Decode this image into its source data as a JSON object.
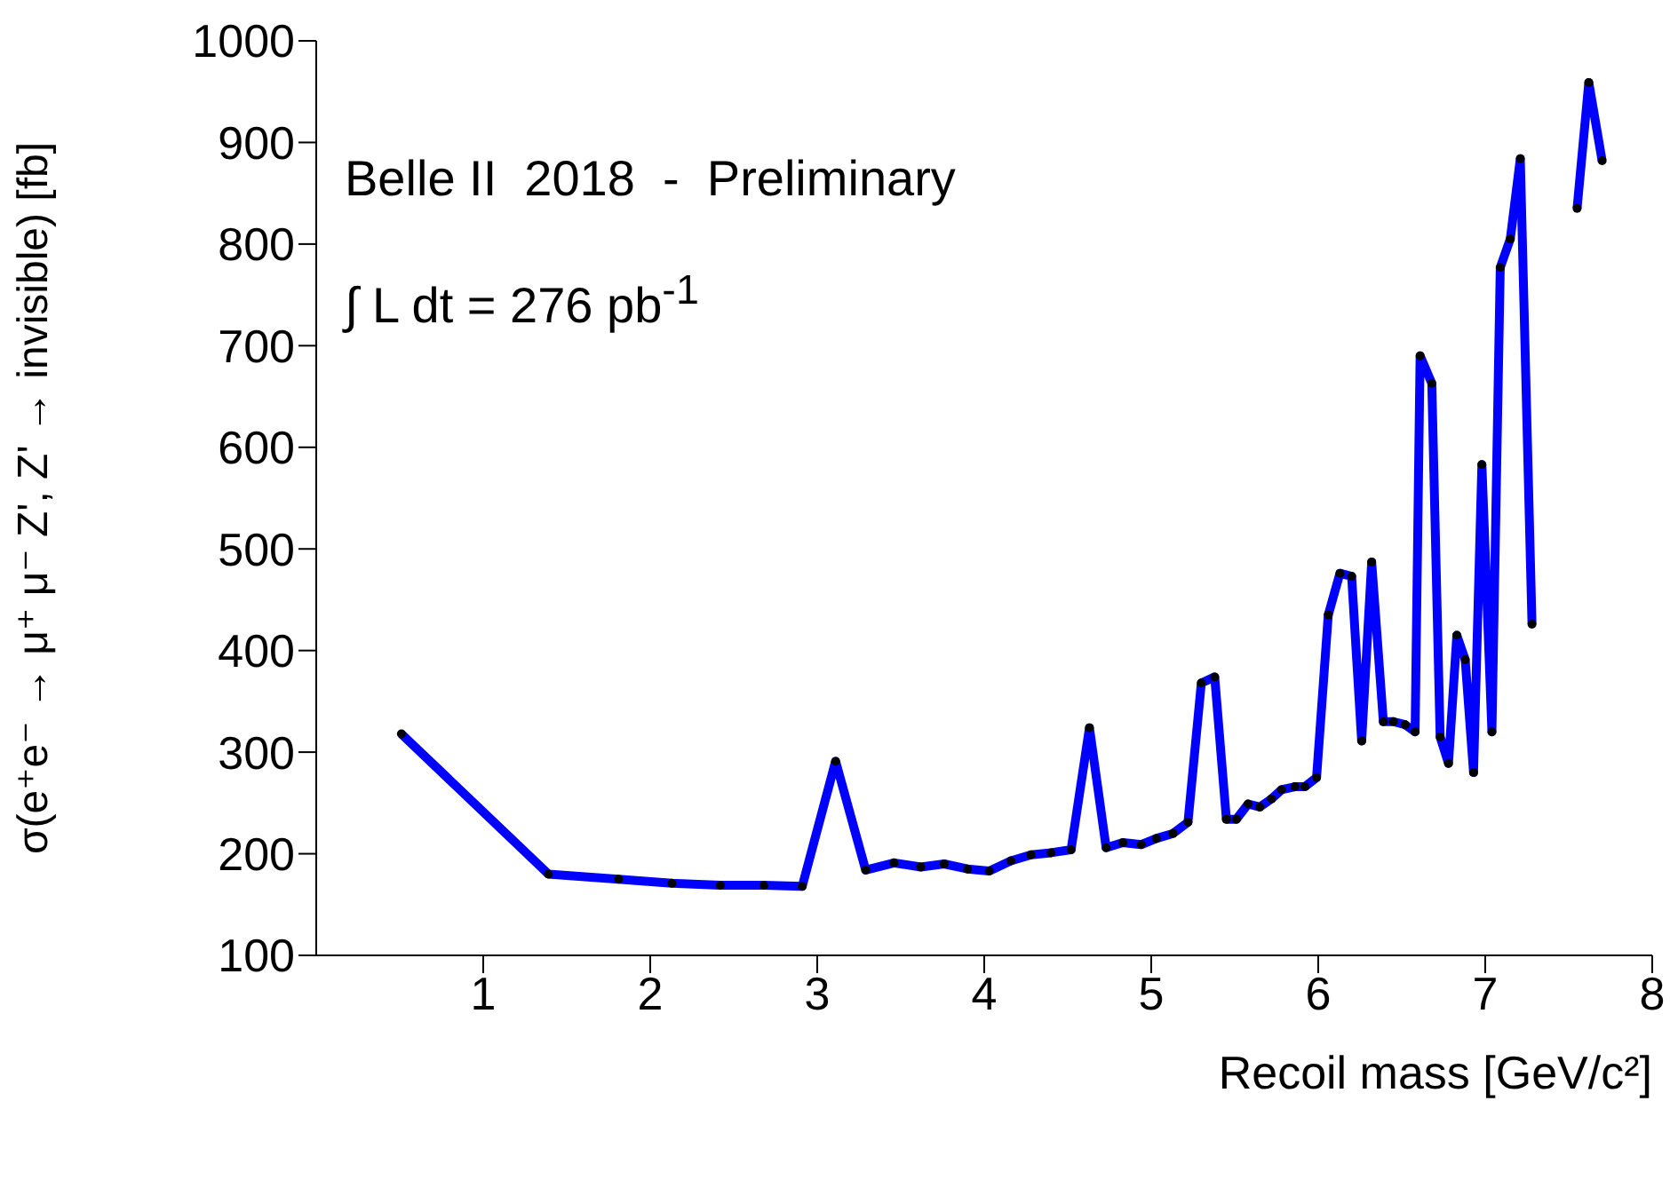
{
  "chart_data": {
    "type": "line",
    "xlabel": "Recoil mass [GeV/c²]",
    "ylabel": "σ(e⁺e⁻ → μ⁺ μ⁻ Z', Z' → invisible) [fb]",
    "annotations": [
      "Belle II  2018  -  Preliminary",
      "∫ L dt = 276 pb$^{-1}$"
    ],
    "x": [
      0.51,
      1.39,
      1.81,
      2.13,
      2.42,
      2.68,
      2.91,
      3.11,
      3.29,
      3.46,
      3.62,
      3.76,
      3.9,
      4.03,
      4.16,
      4.28,
      4.4,
      4.52,
      4.63,
      4.73,
      4.83,
      4.94,
      5.03,
      5.13,
      5.22,
      5.3,
      5.38,
      5.45,
      5.51,
      5.58,
      5.65,
      5.72,
      5.78,
      5.86,
      5.92,
      5.99,
      6.06,
      6.13,
      6.2,
      6.26,
      6.32,
      6.39,
      6.45,
      6.52,
      6.58,
      6.61,
      6.68,
      6.73,
      6.78,
      6.83,
      6.88,
      6.93,
      6.98,
      7.04,
      7.09,
      7.15,
      7.21,
      7.28,
      7.4,
      7.55,
      7.62,
      7.7
    ],
    "series": [
      {
        "color": "#0000ff",
        "values": [
          318,
          180,
          175,
          171,
          169,
          169,
          168,
          291,
          184,
          191,
          187,
          190,
          185,
          183,
          193,
          199,
          201,
          204,
          324,
          206,
          211,
          209,
          215,
          220,
          231,
          368,
          374,
          234,
          234,
          249,
          246,
          254,
          263,
          266,
          266,
          275,
          435,
          476,
          473,
          311,
          487,
          330,
          330,
          327,
          320,
          690,
          663,
          315,
          289,
          415,
          391,
          280,
          583,
          320,
          777,
          805,
          884,
          426,
          null,
          835,
          959,
          882
        ]
      }
    ],
    "xlim": [
      0,
      8
    ],
    "xticks": [
      1,
      2,
      3,
      4,
      5,
      6,
      7,
      8
    ],
    "ylim": [
      100,
      1000
    ],
    "yticks": [
      100,
      200,
      300,
      400,
      500,
      600,
      700,
      800,
      900,
      1000
    ],
    "grid": false,
    "legend": false,
    "marker": "circle",
    "line_style": "solid"
  }
}
